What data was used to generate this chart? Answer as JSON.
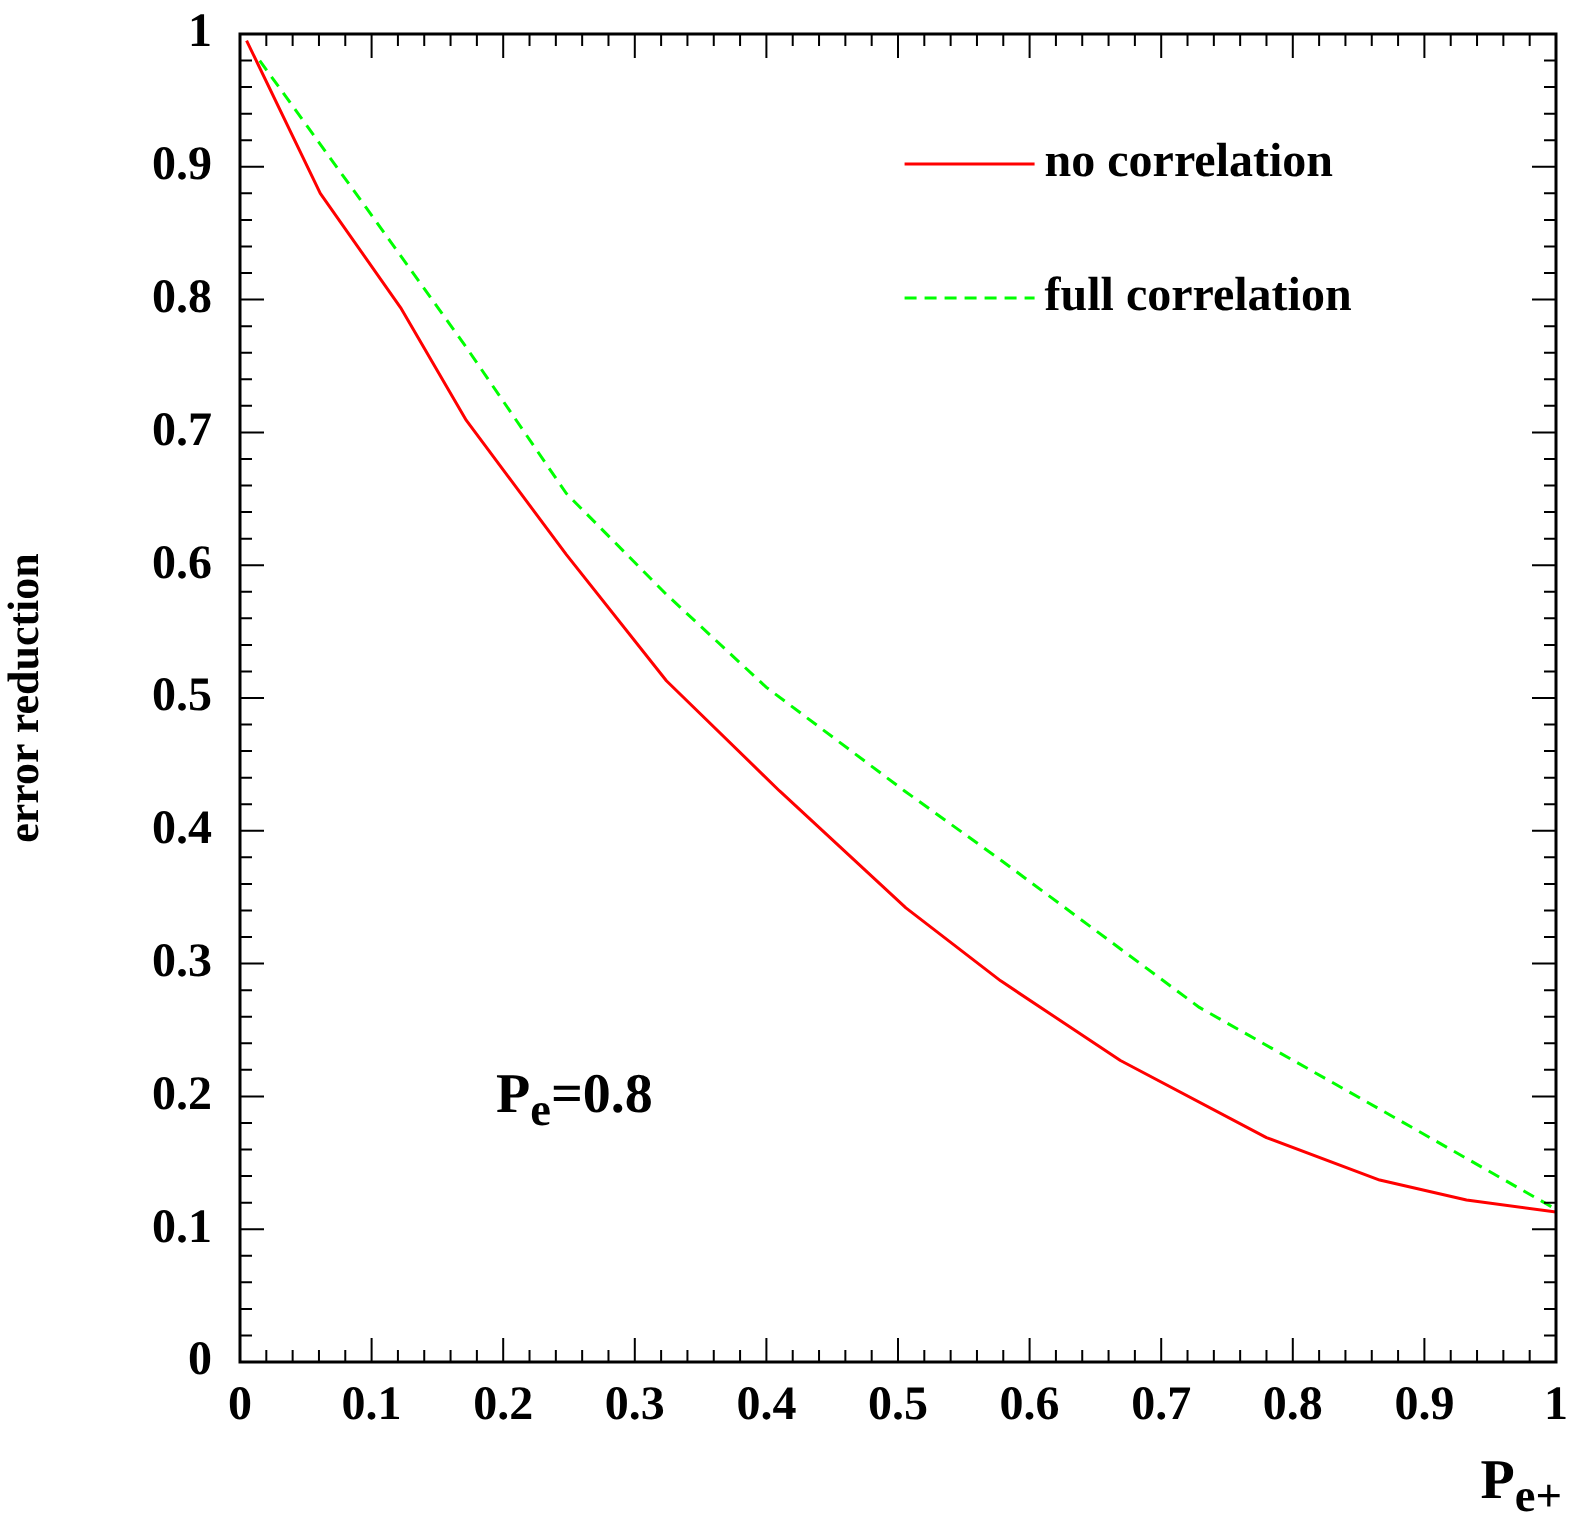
{
  "chart_data": {
    "type": "line",
    "xlabel": "P$_{e+}$",
    "ylabel": "error reduction",
    "annotations": [
      "P$_{e}$=0.8"
    ],
    "xlim": [
      0,
      1
    ],
    "ylim": [
      0,
      1
    ],
    "xticks": [
      0,
      0.1,
      0.2,
      0.3,
      0.4,
      0.5,
      0.6,
      0.7,
      0.8,
      0.9,
      1
    ],
    "yticks": [
      0,
      0.1,
      0.2,
      0.3,
      0.4,
      0.5,
      0.6,
      0.7,
      0.8,
      0.9,
      1
    ],
    "grid": false,
    "legend": "top right",
    "marker": "none",
    "series": [
      {
        "name": "no correlation",
        "color": "#ff0000",
        "line_style": "solid",
        "x": [
          0.005,
          0.061,
          0.122,
          0.172,
          0.248,
          0.324,
          0.41,
          0.506,
          0.578,
          0.669,
          0.78,
          0.866,
          0.932,
          1.0
        ],
        "values": [
          0.995,
          0.88,
          0.794,
          0.709,
          0.608,
          0.513,
          0.43,
          0.342,
          0.287,
          0.227,
          0.169,
          0.137,
          0.122,
          0.113
        ]
      },
      {
        "name": "full correlation",
        "color": "#00ff00",
        "line_style": "dashed",
        "x": [
          0.015,
          0.096,
          0.172,
          0.248,
          0.324,
          0.4,
          0.505,
          0.578,
          0.729,
          0.881,
          1.0
        ],
        "values": [
          0.98,
          0.869,
          0.764,
          0.654,
          0.578,
          0.508,
          0.43,
          0.378,
          0.267,
          0.182,
          0.115
        ]
      }
    ]
  }
}
